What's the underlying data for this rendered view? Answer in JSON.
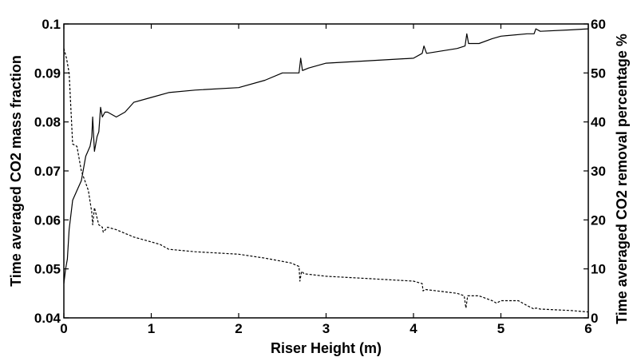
{
  "chart_data": {
    "type": "line",
    "title": "",
    "xlabel": "Riser Height (m)",
    "ylabel_left": "Time averaged CO2 mass fraction",
    "ylabel_right": "Time averaged CO2 removal percentage %",
    "xlim": [
      0,
      6
    ],
    "ylim_left": [
      0.04,
      0.1
    ],
    "ylim_right": [
      0,
      60
    ],
    "x_ticks": [
      "0",
      "1",
      "2",
      "3",
      "4",
      "5",
      "6"
    ],
    "y_left_ticks": [
      "0.04",
      "0.05",
      "0.06",
      "0.07",
      "0.08",
      "0.09",
      "0.1"
    ],
    "y_right_ticks": [
      "0",
      "10",
      "20",
      "30",
      "40",
      "50",
      "60"
    ],
    "grid": false,
    "legend": "none",
    "series": [
      {
        "axis": "left",
        "style": "dashed",
        "x": [
          0.0,
          0.03,
          0.06,
          0.1,
          0.15,
          0.2,
          0.25,
          0.28,
          0.32,
          0.33,
          0.35,
          0.4,
          0.44,
          0.45,
          0.5,
          0.6,
          0.8,
          1.0,
          1.1,
          1.2,
          1.5,
          2.0,
          2.3,
          2.6,
          2.69,
          2.7,
          2.72,
          2.75,
          3.0,
          3.5,
          4.0,
          4.1,
          4.11,
          4.13,
          4.5,
          4.58,
          4.6,
          4.62,
          4.75,
          4.9,
          4.95,
          5.0,
          5.2,
          5.3,
          5.38,
          5.4,
          5.45,
          5.8,
          6.0
        ],
        "y": [
          0.095,
          0.093,
          0.09,
          0.0755,
          0.075,
          0.07,
          0.0675,
          0.066,
          0.0615,
          0.059,
          0.0625,
          0.059,
          0.0585,
          0.0575,
          0.0585,
          0.058,
          0.0565,
          0.0555,
          0.055,
          0.054,
          0.0535,
          0.053,
          0.0522,
          0.0512,
          0.0505,
          0.0475,
          0.0495,
          0.049,
          0.0485,
          0.048,
          0.0475,
          0.047,
          0.0455,
          0.0458,
          0.045,
          0.0445,
          0.042,
          0.0445,
          0.0445,
          0.0435,
          0.043,
          0.0435,
          0.0435,
          0.0425,
          0.0418,
          0.042,
          0.0418,
          0.0415,
          0.0412
        ]
      },
      {
        "axis": "right",
        "style": "solid",
        "x": [
          0.0,
          0.02,
          0.04,
          0.06,
          0.1,
          0.15,
          0.2,
          0.25,
          0.3,
          0.32,
          0.33,
          0.35,
          0.38,
          0.4,
          0.42,
          0.44,
          0.47,
          0.5,
          0.6,
          0.7,
          0.8,
          1.0,
          1.2,
          1.5,
          2.0,
          2.3,
          2.5,
          2.69,
          2.71,
          2.73,
          2.8,
          3.0,
          3.5,
          4.0,
          4.1,
          4.12,
          4.15,
          4.5,
          4.59,
          4.61,
          4.63,
          4.75,
          4.9,
          5.0,
          5.3,
          5.38,
          5.4,
          5.45,
          5.8,
          6.0
        ],
        "y": [
          7,
          10,
          12,
          18,
          24,
          26,
          28,
          33,
          35,
          37,
          41,
          34,
          37,
          38,
          43,
          41,
          42,
          42,
          41,
          42,
          44,
          45,
          46,
          46.5,
          47,
          48.5,
          50,
          50,
          53,
          50.5,
          51,
          52,
          52.5,
          53,
          54,
          55.5,
          54,
          55,
          55.5,
          58,
          56,
          56,
          57,
          57.5,
          58,
          58,
          59,
          58.5,
          58.8,
          59
        ]
      }
    ]
  }
}
